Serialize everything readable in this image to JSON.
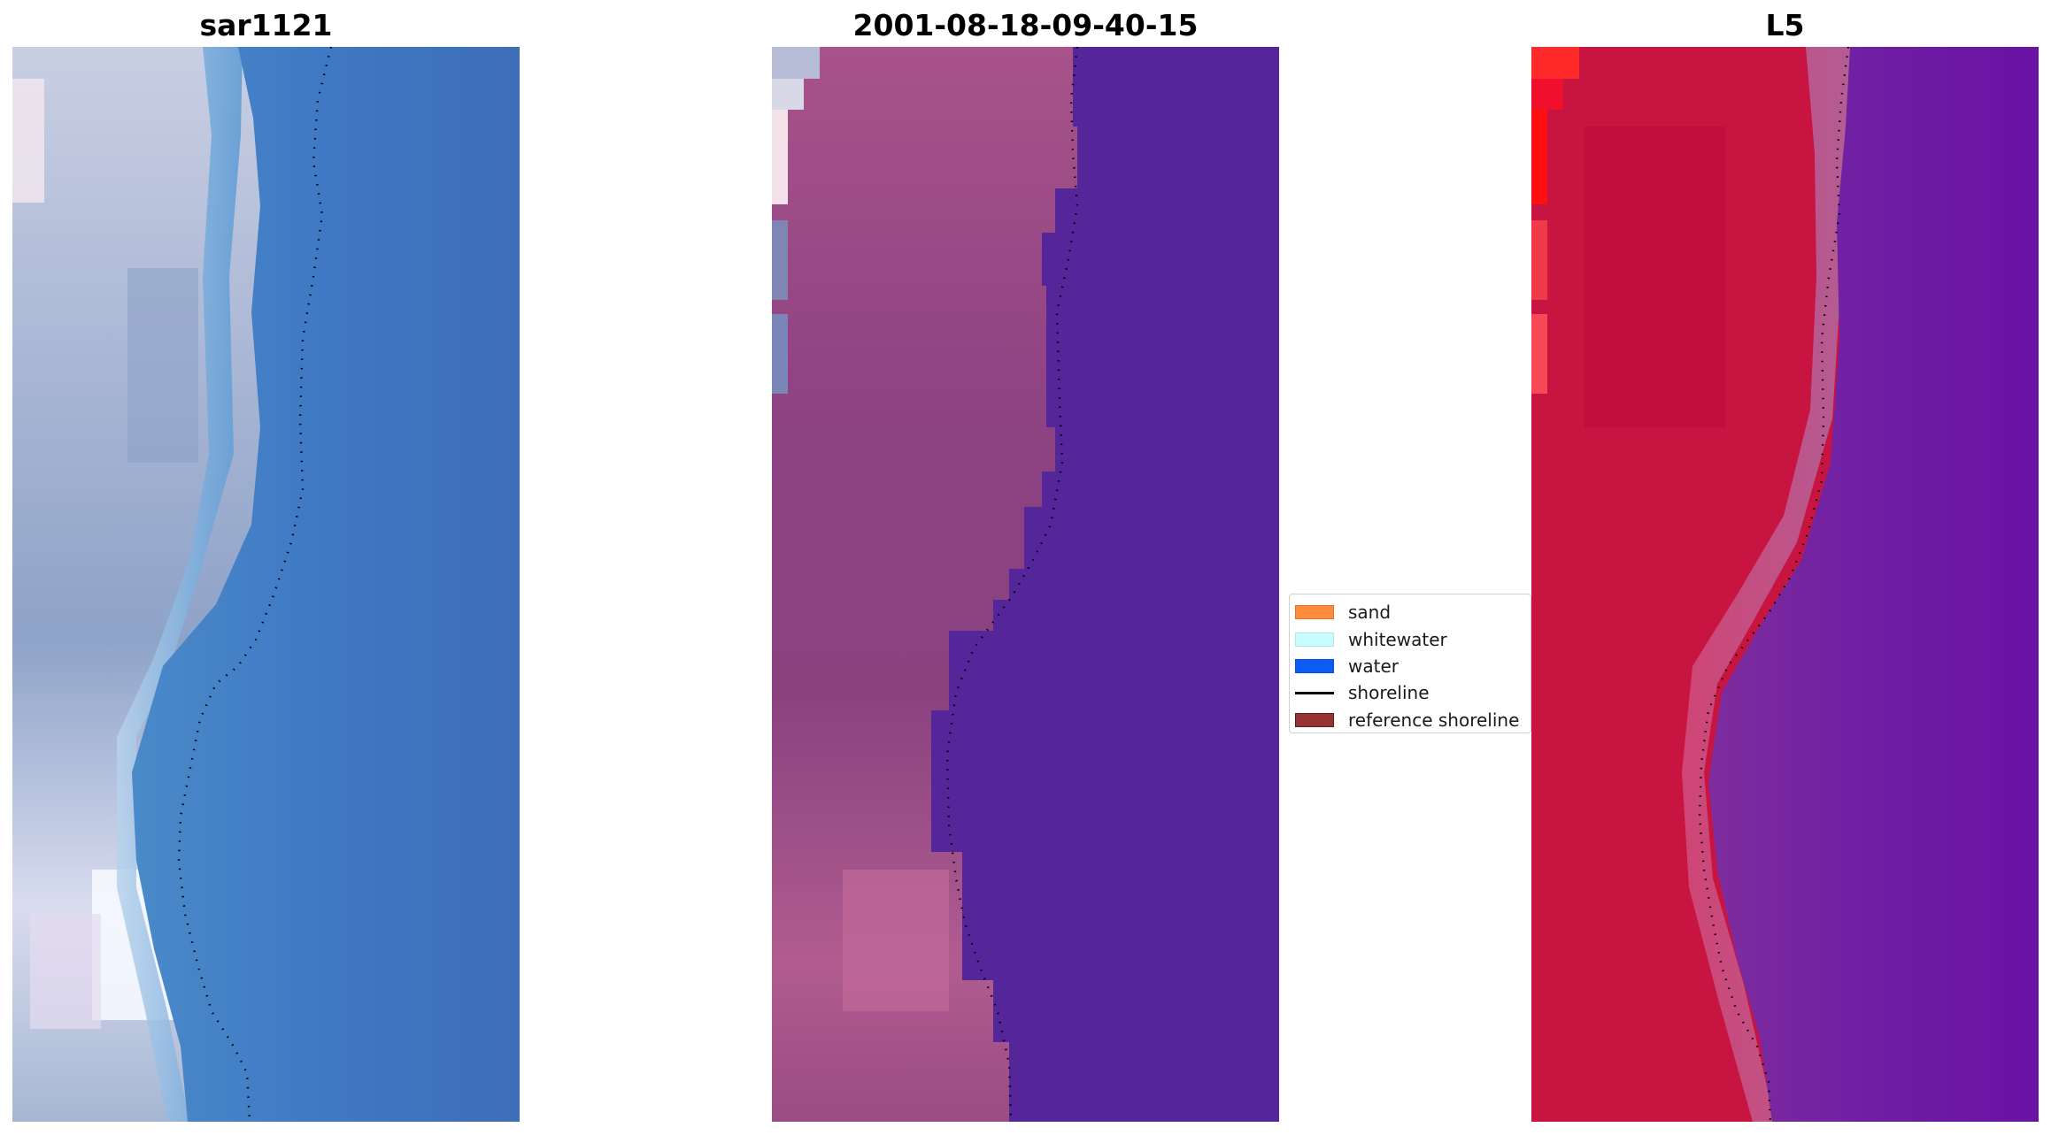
{
  "panels": [
    {
      "title": "sar1121"
    },
    {
      "title": "2001-08-18-09-40-15"
    },
    {
      "title": "L5"
    }
  ],
  "legend": {
    "items": [
      {
        "label": "sand",
        "color": "#ff8c3c",
        "kind": "patch"
      },
      {
        "label": "whitewater",
        "color": "#c8fdff",
        "kind": "patch"
      },
      {
        "label": "water",
        "color": "#0b5cf5",
        "kind": "patch"
      },
      {
        "label": "shoreline",
        "color": "#000000",
        "kind": "line"
      },
      {
        "label": "reference shoreline",
        "color": "#963333",
        "kind": "patch"
      }
    ]
  }
}
